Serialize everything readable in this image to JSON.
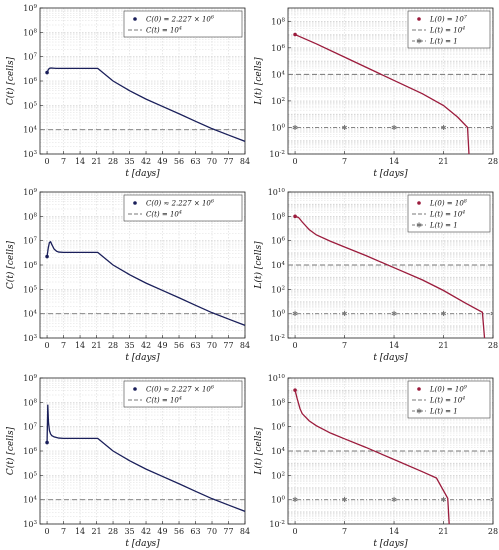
{
  "colors": {
    "c_series": "#1a1f5a",
    "l_series": "#9b1b3c",
    "threshold": "#777777",
    "grid": "#cfcfcf"
  },
  "chart_data": [
    {
      "type": "line",
      "xlabel": "t [days]",
      "ylabel": "C(t) [cells]",
      "xlim": [
        -3,
        84
      ],
      "ylim_log10": [
        3,
        9
      ],
      "log_y": true,
      "xticks": [
        "0",
        "7",
        "14",
        "21",
        "28",
        "35",
        "42",
        "49",
        "56",
        "63",
        "70",
        "77",
        "84"
      ],
      "yticks": [
        "10^3",
        "10^4",
        "10^5",
        "10^6",
        "10^7",
        "10^8",
        "10^9"
      ],
      "grid": true,
      "legend_placement": "top-right",
      "series": [
        {
          "name": "C(0) = 2.227 × 10^6",
          "style": "point",
          "x": [
            0
          ],
          "y": [
            2227000
          ]
        },
        {
          "name": "C(t) = 10^4",
          "style": "dashed",
          "x": [
            -3,
            84
          ],
          "y": [
            10000,
            10000
          ]
        },
        {
          "name": "",
          "style": "line",
          "x": [
            0,
            0.3,
            0.6,
            1,
            1.5,
            2,
            3,
            4,
            7,
            10,
            14,
            18,
            21.5,
            28,
            35,
            42,
            49,
            56,
            63,
            70,
            77,
            84
          ],
          "y": [
            2227000,
            2600000,
            3000000,
            3300000,
            3400000,
            3400000,
            3350000,
            3300000,
            3300000,
            3300000,
            3300000,
            3300000,
            3300000,
            1000000,
            400000,
            180000,
            90000,
            45000,
            22000,
            11000,
            6000,
            3300
          ]
        }
      ]
    },
    {
      "type": "line",
      "xlabel": "t [days]",
      "ylabel": "L(t) [cells]",
      "xlim": [
        -1,
        28
      ],
      "ylim_log10": [
        -2,
        9
      ],
      "log_y": true,
      "xticks": [
        "0",
        "7",
        "14",
        "21",
        "28"
      ],
      "yticks": [
        "10^-2",
        "10^0",
        "10^2",
        "10^4",
        "10^6",
        "10^8"
      ],
      "grid": true,
      "legend_placement": "top-right",
      "series": [
        {
          "name": "L(0) = 10^7",
          "style": "point",
          "x": [
            0
          ],
          "y": [
            10000000
          ]
        },
        {
          "name": "L(t) = 10^4",
          "style": "dashed",
          "x": [
            -1,
            28
          ],
          "y": [
            10000,
            10000
          ]
        },
        {
          "name": "L(t) = 1",
          "style": "dash-star",
          "x": [
            -1,
            28
          ],
          "y": [
            1,
            1
          ]
        },
        {
          "name": "",
          "style": "line",
          "x": [
            0,
            3,
            7,
            10,
            14,
            18,
            21,
            23,
            24.4,
            24.6
          ],
          "y": [
            10000000,
            2000000,
            200000,
            35000,
            3500,
            350,
            45,
            6,
            1,
            0.01
          ]
        }
      ]
    },
    {
      "type": "line",
      "xlabel": "t [days]",
      "ylabel": "C(t) [cells]",
      "xlim": [
        -3,
        84
      ],
      "ylim_log10": [
        3,
        9
      ],
      "log_y": true,
      "xticks": [
        "0",
        "7",
        "14",
        "21",
        "28",
        "35",
        "42",
        "49",
        "56",
        "63",
        "70",
        "77",
        "84"
      ],
      "yticks": [
        "10^3",
        "10^4",
        "10^5",
        "10^6",
        "10^7",
        "10^8",
        "10^9"
      ],
      "grid": true,
      "legend_placement": "top-right",
      "series": [
        {
          "name": "C(0) ≈ 2.227 × 10^6",
          "style": "point",
          "x": [
            0
          ],
          "y": [
            2227000
          ]
        },
        {
          "name": "C(t) = 10^4",
          "style": "dashed",
          "x": [
            -3,
            84
          ],
          "y": [
            10000,
            10000
          ]
        },
        {
          "name": "",
          "style": "line",
          "x": [
            0,
            0.5,
            1,
            1.5,
            2,
            3,
            4,
            5,
            7,
            10,
            14,
            18,
            21.5,
            28,
            35,
            42,
            49,
            56,
            63,
            70,
            77,
            84
          ],
          "y": [
            2227000,
            5000000,
            8500000,
            9000000,
            7000000,
            4500000,
            3700000,
            3400000,
            3300000,
            3300000,
            3300000,
            3300000,
            3300000,
            1000000,
            400000,
            180000,
            90000,
            45000,
            22000,
            11000,
            6000,
            3300
          ]
        }
      ]
    },
    {
      "type": "line",
      "xlabel": "t [days]",
      "ylabel": "L(t) [cells]",
      "xlim": [
        -1,
        28
      ],
      "ylim_log10": [
        -2,
        10
      ],
      "log_y": true,
      "xticks": [
        "0",
        "7",
        "14",
        "21",
        "28"
      ],
      "yticks": [
        "10^-2",
        "10^0",
        "10^2",
        "10^4",
        "10^6",
        "10^8",
        "10^10"
      ],
      "grid": true,
      "legend_placement": "top-right",
      "series": [
        {
          "name": "L(0) = 10^8",
          "style": "point",
          "x": [
            0
          ],
          "y": [
            100000000
          ]
        },
        {
          "name": "L(t) = 10^4",
          "style": "dashed",
          "x": [
            -1,
            28
          ],
          "y": [
            10000,
            10000
          ]
        },
        {
          "name": "L(t) = 1",
          "style": "dash-star",
          "x": [
            -1,
            28
          ],
          "y": [
            1,
            1
          ]
        },
        {
          "name": "",
          "style": "line",
          "x": [
            0,
            0.5,
            1,
            2,
            3,
            5,
            7,
            10,
            14,
            18,
            21,
            24,
            26.5,
            26.8
          ],
          "y": [
            100000000,
            80000000,
            35000000,
            8000000,
            3000000,
            900000,
            300000,
            60000,
            6000,
            600,
            80,
            8,
            1.3,
            0.01
          ]
        }
      ]
    },
    {
      "type": "line",
      "xlabel": "t [days]",
      "ylabel": "C(t) [cells]",
      "xlim": [
        -3,
        84
      ],
      "ylim_log10": [
        3,
        9
      ],
      "log_y": true,
      "xticks": [
        "0",
        "7",
        "14",
        "21",
        "28",
        "35",
        "42",
        "49",
        "56",
        "63",
        "70",
        "77",
        "84"
      ],
      "yticks": [
        "10^3",
        "10^4",
        "10^5",
        "10^6",
        "10^7",
        "10^8",
        "10^9"
      ],
      "grid": true,
      "legend_placement": "top-right",
      "series": [
        {
          "name": "C(0) ≈ 2.227 × 10^6",
          "style": "point",
          "x": [
            0
          ],
          "y": [
            2227000
          ]
        },
        {
          "name": "C(t) = 10^4",
          "style": "dashed",
          "x": [
            -3,
            84
          ],
          "y": [
            10000,
            10000
          ]
        },
        {
          "name": "",
          "style": "line",
          "x": [
            0,
            0.3,
            0.6,
            1,
            1.5,
            2,
            3,
            5,
            7,
            10,
            14,
            18,
            21.5,
            28,
            35,
            42,
            49,
            56,
            63,
            70,
            77,
            84
          ],
          "y": [
            2227000,
            80000000,
            15000000,
            7000000,
            5000000,
            4300000,
            3800000,
            3400000,
            3300000,
            3300000,
            3300000,
            3300000,
            3300000,
            1000000,
            400000,
            180000,
            90000,
            45000,
            22000,
            11000,
            6000,
            3300
          ]
        }
      ]
    },
    {
      "type": "line",
      "xlabel": "t [days]",
      "ylabel": "L(t) [cells]",
      "xlim": [
        -1,
        28
      ],
      "ylim_log10": [
        -2,
        10
      ],
      "log_y": true,
      "xticks": [
        "0",
        "7",
        "14",
        "21",
        "28"
      ],
      "yticks": [
        "10^-2",
        "10^0",
        "10^2",
        "10^4",
        "10^6",
        "10^8",
        "10^10"
      ],
      "grid": true,
      "legend_placement": "top-right",
      "series": [
        {
          "name": "L(0) = 10^9",
          "style": "point",
          "x": [
            0
          ],
          "y": [
            1000000000
          ]
        },
        {
          "name": "L(t) = 10^4",
          "style": "dashed",
          "x": [
            -1,
            28
          ],
          "y": [
            10000,
            10000
          ]
        },
        {
          "name": "L(t) = 1",
          "style": "dash-star",
          "x": [
            -1,
            28
          ],
          "y": [
            1,
            1
          ]
        },
        {
          "name": "",
          "style": "line",
          "x": [
            0,
            0.3,
            0.7,
            1,
            2,
            3,
            5,
            7,
            10,
            14,
            18,
            20,
            21.6,
            21.8
          ],
          "y": [
            1000000000,
            200000000,
            30000000,
            12000000,
            3000000,
            1200000,
            300000,
            100000,
            20000,
            2000,
            200,
            60,
            1.3,
            0.01
          ]
        }
      ]
    }
  ]
}
